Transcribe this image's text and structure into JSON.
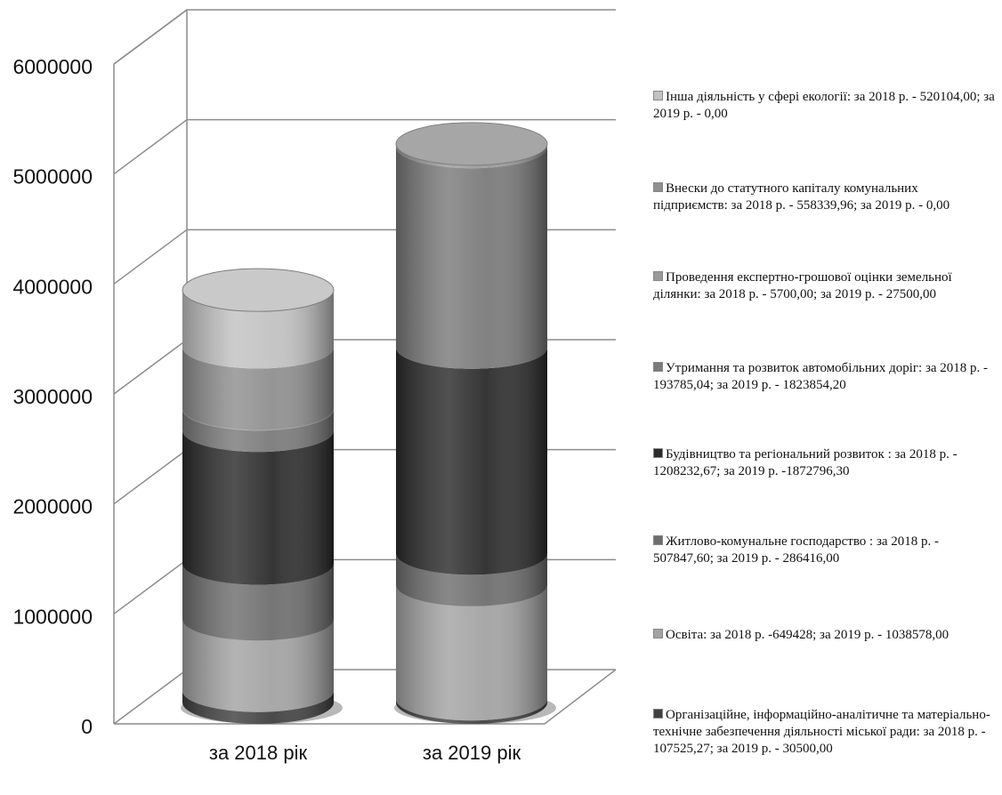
{
  "chart_data": {
    "type": "bar",
    "stacked": true,
    "style": "3d-cylinder",
    "categories": [
      "за  2018 рік",
      "за 2019 рік"
    ],
    "y_ticks": [
      "0",
      "1000000",
      "2000000",
      "3000000",
      "4000000",
      "5000000",
      "6000000"
    ],
    "ylim": [
      0,
      6000000
    ],
    "grid": true,
    "legend_position": "right",
    "series": [
      {
        "legend": "Організаційне, інформаційно-аналітичне та матеріально-технічне забезпечення діяльності міської ради: за  2018 р. - 107525,27; за 2019 р. - 30500,00",
        "values": [
          107525.27,
          30500.0
        ],
        "color": "#404040"
      },
      {
        "legend": "Освіта: за 2018 р. -649428; за  2019 р. - 1038578,00",
        "values": [
          649428,
          1038578.0
        ],
        "color": "#a3a3a3"
      },
      {
        "legend": "Житлово-комунальне господарство : за 2018 р. -  507847,60; за  2019 р. - 286416,00",
        "values": [
          507847.6,
          286416.0
        ],
        "color": "#6e6e6e"
      },
      {
        "legend": "Будівництво та регіональний розвиток : за 2018 р. -  1208232,67; за  2019 р. -1872796,30",
        "values": [
          1208232.67,
          1872796.3
        ],
        "color": "#2b2b2b"
      },
      {
        "legend": "Утримання та розвиток автомобільних доріг: за 2018 р. -  193785,04; за  2019 р. - 1823854,20",
        "values": [
          193785.04,
          1823854.2
        ],
        "color": "#7a7a7a"
      },
      {
        "legend": "Проведення експертно-грошової оцінки земельної ділянки: за 2018 р. -  5700,00; за 2019 р. - 27500,00",
        "values": [
          5700.0,
          27500.0
        ],
        "color": "#9a9a9a"
      },
      {
        "legend": "Внески до статутного капіталу комунальних підприємств: за 2018 р. -  558339,96; за  2019 р. - 0,00",
        "values": [
          558339.96,
          0.0
        ],
        "color": "#8f8f8f"
      },
      {
        "legend": "Інша діяльність у сфері екології: за 2018 р. - 520104,00; за  2019 р. - 0,00",
        "values": [
          520104.0,
          0.0
        ],
        "color": "#c2c2c2"
      }
    ]
  }
}
